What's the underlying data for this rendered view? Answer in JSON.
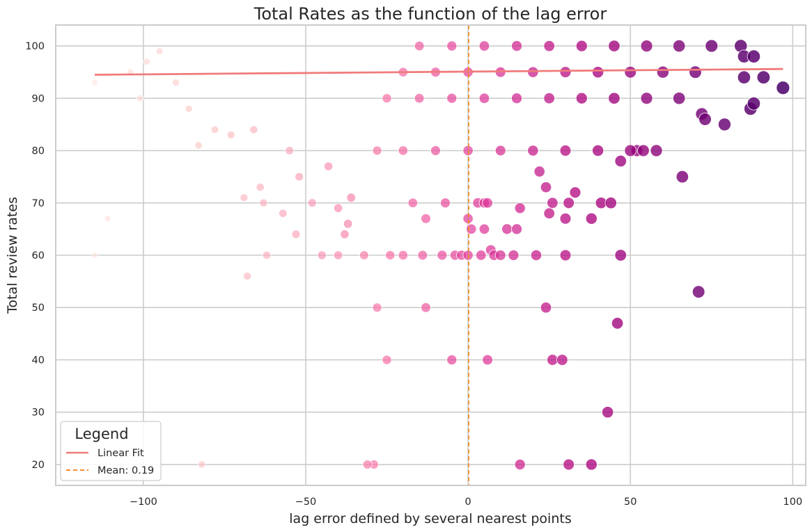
{
  "chart_data": {
    "type": "scatter",
    "title": "Total Rates as the function of the lag error",
    "xlabel": "lag error defined by several nearest points",
    "ylabel": "Total review rates",
    "xlim": [
      -127,
      104
    ],
    "ylim": [
      16,
      104
    ],
    "x_ticks": [
      -100,
      -50,
      0,
      50,
      100
    ],
    "x_tick_labels": [
      "−100",
      "−50",
      "0",
      "50",
      "100"
    ],
    "y_ticks": [
      20,
      30,
      40,
      50,
      60,
      70,
      80,
      90,
      100
    ],
    "y_tick_labels": [
      "20",
      "30",
      "40",
      "50",
      "60",
      "70",
      "80",
      "90",
      "100"
    ],
    "grid": true,
    "color_map": [
      "#fde0dd",
      "#fcc5c0",
      "#fa9fb5",
      "#f768a1",
      "#dd3497",
      "#ae017e",
      "#7a0177",
      "#49006a"
    ],
    "linear_fit": {
      "name": "Linear Fit",
      "x": [
        -115,
        97
      ],
      "y": [
        94.5,
        95.6
      ],
      "color": "#f07b7b"
    },
    "mean_line": {
      "name": "Mean: 0.19",
      "x": 0.19,
      "color": "#f28e2b"
    },
    "legend": {
      "title": "Legend",
      "placement": "lower-left",
      "entries": [
        "Linear Fit",
        "Mean: 0.19"
      ]
    },
    "series": [
      {
        "points": [
          [
            -115,
            60
          ],
          [
            -111,
            67
          ],
          [
            -115,
            93
          ],
          [
            -82,
            20
          ],
          [
            -68,
            56
          ],
          [
            -101,
            90
          ],
          [
            -104,
            95
          ],
          [
            -99,
            97
          ],
          [
            -95,
            99
          ],
          [
            -90,
            93
          ],
          [
            -86,
            88
          ],
          [
            -83,
            81
          ],
          [
            -78,
            84
          ],
          [
            -73,
            83
          ],
          [
            -69,
            71
          ],
          [
            -66,
            84
          ],
          [
            -64,
            73
          ],
          [
            -63,
            70
          ],
          [
            -62,
            60
          ],
          [
            -57,
            68
          ],
          [
            -55,
            80
          ],
          [
            -53,
            64
          ],
          [
            -52,
            75
          ],
          [
            -48,
            70
          ],
          [
            -45,
            60
          ],
          [
            -43,
            77
          ],
          [
            -40,
            69
          ],
          [
            -40,
            60
          ],
          [
            -38,
            64
          ],
          [
            -37,
            66
          ],
          [
            -36,
            71
          ],
          [
            -32,
            60
          ],
          [
            -28,
            50
          ],
          [
            -25,
            40
          ],
          [
            -24,
            60
          ],
          [
            -20,
            60
          ],
          [
            -17,
            70
          ],
          [
            -14,
            60
          ],
          [
            -13,
            50
          ],
          [
            -13,
            67
          ],
          [
            -8,
            60
          ],
          [
            -7,
            70
          ],
          [
            -5,
            40
          ],
          [
            -4,
            60
          ],
          [
            -2,
            60
          ],
          [
            0,
            60
          ],
          [
            0,
            67
          ],
          [
            1,
            65
          ],
          [
            3,
            70
          ],
          [
            4,
            60
          ],
          [
            5,
            70
          ],
          [
            5,
            65
          ],
          [
            6,
            70
          ],
          [
            6,
            40
          ],
          [
            7,
            61
          ],
          [
            8,
            60
          ],
          [
            10,
            60
          ],
          [
            12,
            65
          ],
          [
            14,
            60
          ],
          [
            15,
            65
          ],
          [
            16,
            69
          ],
          [
            16,
            20
          ],
          [
            21,
            60
          ],
          [
            22,
            76
          ],
          [
            24,
            73
          ],
          [
            24,
            50
          ],
          [
            25,
            68
          ],
          [
            26,
            40
          ],
          [
            26,
            70
          ],
          [
            29,
            40
          ],
          [
            30,
            60
          ],
          [
            30,
            67
          ],
          [
            31,
            20
          ],
          [
            31,
            70
          ],
          [
            33,
            72
          ],
          [
            38,
            67
          ],
          [
            38,
            20
          ],
          [
            41,
            70
          ],
          [
            43,
            30
          ],
          [
            44,
            70
          ],
          [
            47,
            60
          ],
          [
            46,
            47
          ],
          [
            47,
            78
          ],
          [
            52,
            80
          ],
          [
            54,
            80
          ],
          [
            58,
            80
          ],
          [
            66,
            75
          ],
          [
            71,
            53
          ],
          [
            72,
            87
          ],
          [
            73,
            86
          ],
          [
            79,
            85
          ],
          [
            84,
            100
          ],
          [
            85,
            94
          ],
          [
            85,
            98
          ],
          [
            87,
            88
          ],
          [
            88,
            98
          ],
          [
            88,
            89
          ],
          [
            91,
            94
          ],
          [
            97,
            92
          ],
          [
            -29,
            20
          ],
          [
            -31,
            20
          ],
          [
            -28,
            80
          ],
          [
            -20,
            80
          ],
          [
            -10,
            80
          ],
          [
            0,
            80
          ],
          [
            10,
            80
          ],
          [
            20,
            80
          ],
          [
            30,
            80
          ],
          [
            40,
            80
          ],
          [
            50,
            80
          ],
          [
            -25,
            90
          ],
          [
            -15,
            90
          ],
          [
            -5,
            90
          ],
          [
            5,
            90
          ],
          [
            15,
            90
          ],
          [
            25,
            90
          ],
          [
            35,
            90
          ],
          [
            45,
            90
          ],
          [
            55,
            90
          ],
          [
            65,
            90
          ],
          [
            -20,
            95
          ],
          [
            -10,
            95
          ],
          [
            0,
            95
          ],
          [
            10,
            95
          ],
          [
            20,
            95
          ],
          [
            30,
            95
          ],
          [
            40,
            95
          ],
          [
            50,
            95
          ],
          [
            60,
            95
          ],
          [
            70,
            95
          ],
          [
            -15,
            100
          ],
          [
            -5,
            100
          ],
          [
            5,
            100
          ],
          [
            15,
            100
          ],
          [
            25,
            100
          ],
          [
            35,
            100
          ],
          [
            45,
            100
          ],
          [
            55,
            100
          ],
          [
            65,
            100
          ],
          [
            75,
            100
          ]
        ]
      }
    ]
  }
}
